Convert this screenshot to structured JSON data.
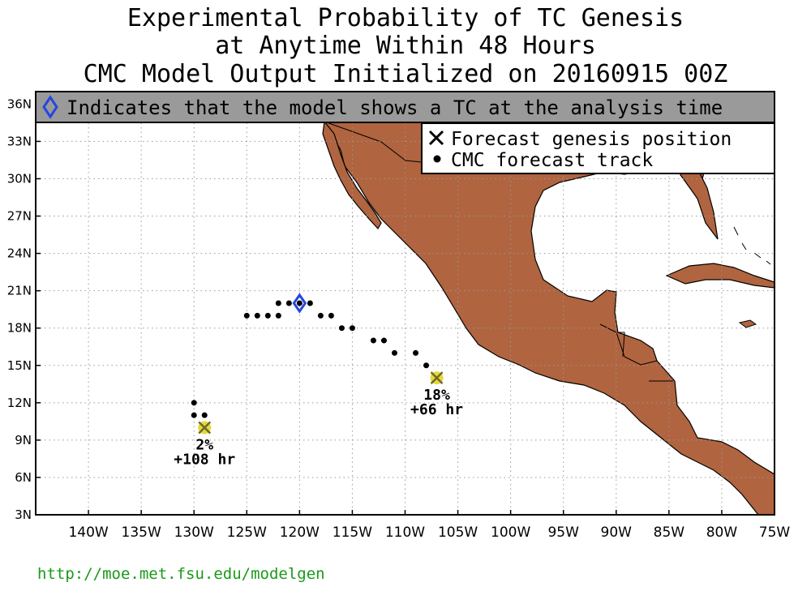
{
  "title": {
    "line1": "Experimental Probability of TC Genesis",
    "line2": "at Anytime Within 48 Hours",
    "line3": "CMC Model Output Initialized on 20160915 00Z"
  },
  "banner": {
    "text": "Indicates that the model shows a TC at the analysis time",
    "icon": "diamond-icon"
  },
  "legend": {
    "genesis_label": "Forecast genesis position",
    "track_label": "CMC forecast track"
  },
  "footer": {
    "url": "http://moe.met.fsu.edu/modelgen"
  },
  "colors": {
    "land": "#b0643f",
    "ocean": "#ffffff",
    "banner_bg": "#9a9a9a",
    "diamond": "#2446e0",
    "genesis_marker": "#e8d83a",
    "url": "#1a9a1a"
  },
  "chart_data": {
    "type": "map",
    "projection": "lat-lon",
    "xlim": [
      -145,
      -75
    ],
    "ylim": [
      3,
      37
    ],
    "lon_ticks": [
      "140W",
      "135W",
      "130W",
      "125W",
      "120W",
      "115W",
      "110W",
      "105W",
      "100W",
      "95W",
      "90W",
      "85W",
      "80W",
      "75W"
    ],
    "lat_ticks": [
      "3N",
      "6N",
      "9N",
      "12N",
      "15N",
      "18N",
      "21N",
      "24N",
      "27N",
      "30N",
      "33N",
      "36N"
    ],
    "grid": true,
    "track_points": [
      [
        -125,
        19
      ],
      [
        -124,
        19
      ],
      [
        -123,
        19
      ],
      [
        -122,
        19
      ],
      [
        -122,
        20
      ],
      [
        -121,
        20
      ],
      [
        -120,
        20
      ],
      [
        -119,
        20
      ],
      [
        -118,
        19
      ],
      [
        -117,
        19
      ],
      [
        -116,
        18
      ],
      [
        -115,
        18
      ],
      [
        -113,
        17
      ],
      [
        -112,
        17
      ],
      [
        -111,
        16
      ],
      [
        -109,
        16
      ],
      [
        -108,
        15
      ],
      [
        -130,
        12
      ],
      [
        -130,
        11
      ],
      [
        -129,
        11
      ]
    ],
    "analysis_tc": {
      "lon": -120,
      "lat": 20
    },
    "genesis": [
      {
        "lon": -107,
        "lat": 14,
        "probability": "18%",
        "lead": "+66 hr"
      },
      {
        "lon": -129,
        "lat": 10,
        "probability": "2%",
        "lead": "+108 hr"
      }
    ]
  }
}
